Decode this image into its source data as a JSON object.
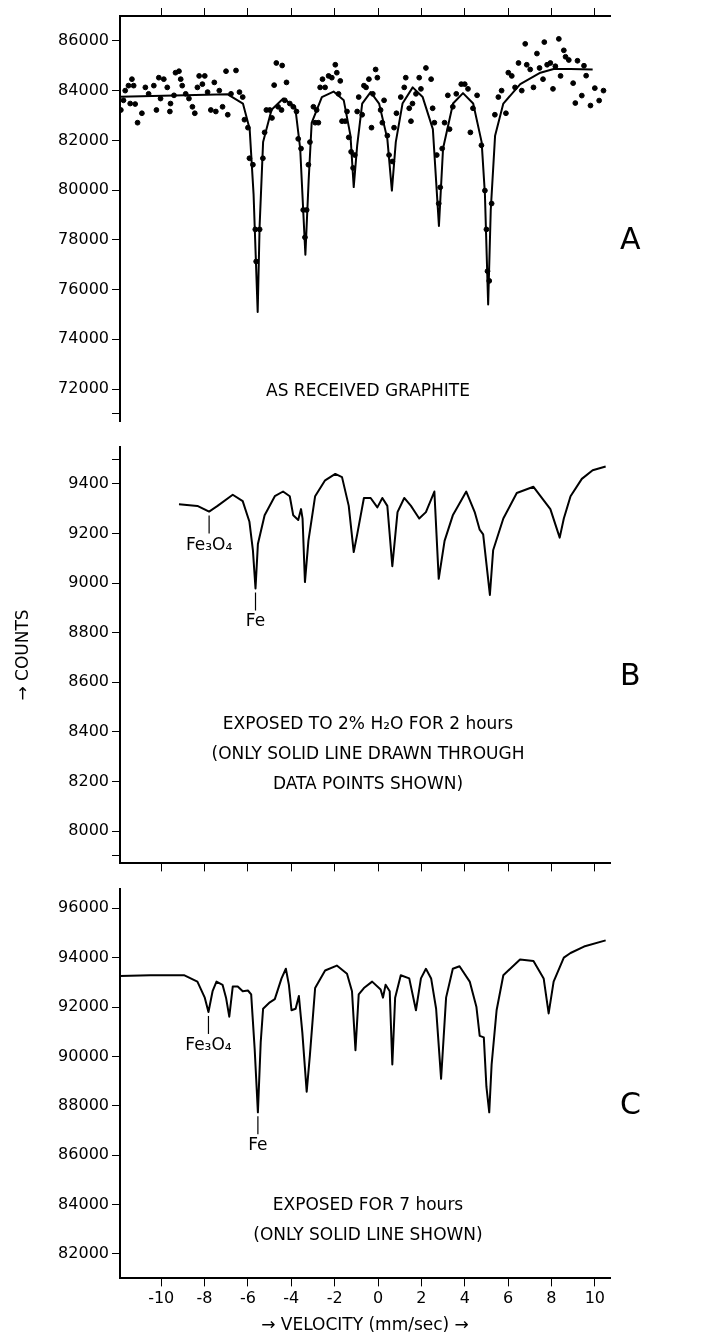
{
  "chart_data": [
    {
      "type": "line",
      "title": "A",
      "annotations": [
        "AS RECEIVED GRAPHITE"
      ],
      "xlim": [
        -11.9,
        10.7
      ],
      "xticks": [
        -10,
        -8,
        -6,
        -4,
        -2,
        0,
        2,
        4,
        6,
        8,
        10
      ],
      "ylim": [
        70700,
        87000
      ],
      "yticks": [
        {
          "value": 71000,
          "label": null
        },
        72000,
        74000,
        76000,
        78000,
        80000,
        82000,
        84000,
        86000
      ],
      "tick_labels": "y",
      "grid": false,
      "series": [
        {
          "type": "scatter",
          "marker": "circle",
          "color": "#000000",
          "x": [
            -11.86,
            -11.74,
            -11.66,
            -11.51,
            -11.35,
            -11.27,
            -11.43,
            -11.2,
            -11.09,
            -10.89,
            -10.73,
            -10.58,
            -10.34,
            -10.22,
            -10.11,
            -10.03,
            -9.88,
            -9.72,
            -9.6,
            -9.57,
            -9.41,
            -9.34,
            -9.18,
            -9.1,
            -9.03,
            -8.87,
            -8.72,
            -8.56,
            -8.45,
            -8.33,
            -8.25,
            -8.1,
            -7.99,
            -7.86,
            -7.71,
            -7.55,
            -7.48,
            -7.32,
            -7.17,
            -7.01,
            -6.93,
            -6.78,
            -6.55,
            -6.39,
            -6.24,
            -6.16,
            -6.0,
            -5.93,
            -5.77,
            -5.66,
            -5.62,
            -5.46,
            -5.31,
            -5.23,
            -5.15,
            -4.99,
            -4.89,
            -4.79,
            -4.69,
            -4.61,
            -4.45,
            -4.42,
            -4.3,
            -4.22,
            -4.07,
            -3.91,
            -3.76,
            -3.68,
            -3.55,
            -3.45,
            -3.37,
            -3.29,
            -3.21,
            -3.14,
            -2.98,
            -2.9,
            -2.83,
            -2.75,
            -2.67,
            -2.56,
            -2.44,
            -2.28,
            -2.13,
            -1.97,
            -1.9,
            -1.82,
            -1.74,
            -1.66,
            -1.51,
            -1.43,
            -1.35,
            -1.24,
            -1.15,
            -1.07,
            -0.96,
            -0.89,
            -0.73,
            -0.65,
            -0.55,
            -0.42,
            -0.3,
            -0.24,
            -0.11,
            -0.03,
            0.12,
            0.2,
            0.28,
            0.43,
            0.51,
            0.66,
            0.74,
            0.85,
            1.05,
            1.21,
            1.28,
            1.44,
            1.52,
            1.59,
            1.75,
            1.9,
            1.98,
            2.21,
            2.45,
            2.52,
            2.6,
            2.71,
            2.8,
            2.87,
            2.96,
            3.07,
            3.22,
            3.3,
            3.45,
            3.61,
            3.84,
            4.0,
            4.15,
            4.26,
            4.38,
            4.57,
            4.77,
            4.93,
            5.0,
            5.05,
            5.13,
            5.24,
            5.39,
            5.55,
            5.7,
            5.9,
            6.01,
            6.17,
            6.32,
            6.48,
            6.63,
            6.79,
            6.86,
            7.02,
            7.17,
            7.33,
            7.45,
            7.61,
            7.67,
            7.8,
            7.95,
            8.07,
            8.18,
            8.34,
            8.42,
            8.57,
            8.65,
            8.8,
            9.0,
            9.1,
            9.2,
            9.4,
            9.5,
            9.6,
            9.8,
            10.0,
            10.2,
            10.4
          ],
          "values": [
            83220,
            83610,
            84000,
            84200,
            84460,
            84200,
            83480,
            83460,
            82710,
            83090,
            84130,
            83870,
            84200,
            83220,
            84520,
            83680,
            84460,
            84130,
            83160,
            83480,
            83810,
            84720,
            84780,
            84460,
            84200,
            83870,
            83680,
            83350,
            83090,
            84130,
            84590,
            84260,
            84590,
            83940,
            83220,
            84330,
            83160,
            84000,
            83350,
            84780,
            83030,
            83870,
            84810,
            83940,
            83740,
            82830,
            82510,
            81280,
            81020,
            78420,
            77130,
            78420,
            81280,
            82320,
            83220,
            83220,
            82900,
            84220,
            85110,
            83350,
            83220,
            85010,
            83610,
            84330,
            83480,
            83350,
            83160,
            82060,
            81670,
            79200,
            78100,
            79200,
            81020,
            81930,
            83350,
            82710,
            83220,
            82710,
            84130,
            84460,
            84130,
            84590,
            84520,
            85040,
            84720,
            83870,
            84390,
            82770,
            82770,
            83160,
            82120,
            81540,
            80890,
            81410,
            83160,
            83740,
            83030,
            84200,
            84130,
            84460,
            82510,
            83870,
            84850,
            84520,
            83220,
            82710,
            83610,
            82190,
            81410,
            81150,
            82510,
            83090,
            83740,
            84130,
            84520,
            83290,
            82770,
            83480,
            83870,
            84520,
            84070,
            84910,
            84460,
            83290,
            82710,
            81410,
            79460,
            80110,
            81670,
            82710,
            83810,
            82450,
            83350,
            83870,
            84260,
            84260,
            84070,
            82320,
            83290,
            83810,
            81800,
            79980,
            78420,
            76740,
            76350,
            79460,
            83030,
            83740,
            84000,
            83090,
            84720,
            84590,
            84130,
            85110,
            84000,
            85880,
            85040,
            84850,
            84130,
            85490,
            84910,
            84460,
            85950,
            85040,
            85110,
            84070,
            84980,
            86080,
            84590,
            85620,
            85360,
            85230,
            84300,
            83500,
            85200,
            83800,
            85000,
            84600,
            83400,
            84100,
            83600,
            84000
          ]
        },
        {
          "type": "line",
          "color": "#000000",
          "x": [
            -11.9,
            -6.93,
            -6.23,
            -5.92,
            -5.74,
            -5.55,
            -5.46,
            -5.3,
            -4.91,
            -4.37,
            -3.82,
            -3.59,
            -3.35,
            -3.2,
            -3.06,
            -2.59,
            -2.05,
            -1.58,
            -1.27,
            -1.12,
            -0.96,
            -0.73,
            -0.34,
            0.05,
            0.43,
            0.64,
            0.82,
            1.13,
            1.6,
            2.06,
            2.53,
            2.81,
            3.0,
            3.46,
            3.92,
            4.39,
            4.78,
            4.93,
            5.08,
            5.2,
            5.4,
            5.78,
            6.56,
            7.49,
            8.1,
            8.88,
            9.9
          ],
          "values": [
            83750,
            83850,
            83480,
            82460,
            79850,
            75100,
            78570,
            81930,
            83230,
            83680,
            83350,
            81680,
            77400,
            80370,
            82700,
            83740,
            83960,
            83610,
            82190,
            80120,
            81800,
            83480,
            83940,
            83480,
            82060,
            79980,
            81930,
            83480,
            84130,
            83740,
            82450,
            78560,
            81670,
            83480,
            83900,
            83480,
            81930,
            79850,
            75400,
            79200,
            82190,
            83480,
            84260,
            84720,
            84870,
            84870,
            84850
          ]
        }
      ]
    },
    {
      "type": "line",
      "title": "B",
      "ylabel": "→ COUNTS",
      "annotations": [
        {
          "text": "Fe₃O₄",
          "x": -7.79,
          "y": 9288
        },
        {
          "text": "Fe",
          "x": -5.65,
          "y": 8978
        },
        "EXPOSED TO 2% H₂O FOR 2 hours",
        "(ONLY SOLID LINE DRAWN THROUGH",
        "DATA POINTS SHOWN)"
      ],
      "xlim": [
        -11.9,
        10.7
      ],
      "xticks": [
        -10,
        -8,
        -6,
        -4,
        -2,
        0,
        2,
        4,
        6,
        8,
        10
      ],
      "ylim": [
        7870,
        9550
      ],
      "yticks": [
        {
          "value": 7900,
          "label": null
        },
        8000,
        8200,
        8400,
        8600,
        8800,
        9000,
        9200,
        9400,
        {
          "value": 9500,
          "label": null
        }
      ],
      "tick_labels": "y",
      "grid": false,
      "series": [
        {
          "color": "#000000",
          "x": [
            -9.18,
            -8.33,
            -7.79,
            -7.4,
            -6.7,
            -6.24,
            -5.93,
            -5.77,
            -5.65,
            -5.54,
            -5.23,
            -4.76,
            -4.38,
            -4.07,
            -3.91,
            -3.68,
            -3.55,
            -3.48,
            -3.37,
            -3.21,
            -2.9,
            -2.44,
            -1.97,
            -1.66,
            -1.35,
            -1.12,
            -0.96,
            -0.65,
            -0.34,
            -0.03,
            0.2,
            0.43,
            0.66,
            0.9,
            1.21,
            1.52,
            1.9,
            2.21,
            2.6,
            2.8,
            3.07,
            3.45,
            4.07,
            4.46,
            4.69,
            4.85,
            5.16,
            5.31,
            5.78,
            6.4,
            7.17,
            7.95,
            8.38,
            8.57,
            8.88,
            9.4,
            9.9,
            10.5
          ],
          "values": [
            9318,
            9311,
            9288,
            9311,
            9356,
            9330,
            9247,
            9132,
            8978,
            9157,
            9273,
            9350,
            9369,
            9350,
            9273,
            9254,
            9298,
            9260,
            9004,
            9170,
            9350,
            9414,
            9440,
            9427,
            9311,
            9125,
            9196,
            9343,
            9343,
            9305,
            9343,
            9311,
            9068,
            9286,
            9343,
            9311,
            9260,
            9286,
            9369,
            9017,
            9170,
            9273,
            9369,
            9286,
            9215,
            9196,
            8952,
            9132,
            9260,
            9363,
            9388,
            9298,
            9183,
            9260,
            9350,
            9420,
            9455,
            9470
          ]
        }
      ]
    },
    {
      "type": "line",
      "title": "C",
      "xlabel": "→ VELOCITY (mm/sec) →",
      "annotations": [
        {
          "text": "Fe₃O₄",
          "x": -7.82,
          "y": 91800
        },
        {
          "text": "Fe",
          "x": -5.54,
          "y": 87730
        },
        "EXPOSED FOR 7 hours",
        "(ONLY SOLID LINE SHOWN)"
      ],
      "xlim": [
        -11.9,
        10.7
      ],
      "xticks": [
        -10,
        -8,
        -6,
        -4,
        -2,
        0,
        2,
        4,
        6,
        8,
        10
      ],
      "ylim": [
        81000,
        96800
      ],
      "yticks": [
        82000,
        84000,
        86000,
        88000,
        90000,
        92000,
        94000,
        96000
      ],
      "grid": false,
      "series": [
        {
          "color": "#000000",
          "x": [
            -11.9,
            -10.5,
            -8.95,
            -8.33,
            -7.99,
            -7.82,
            -7.63,
            -7.45,
            -7.17,
            -7.01,
            -6.86,
            -6.7,
            -6.47,
            -6.24,
            -6.0,
            -5.85,
            -5.69,
            -5.54,
            -5.41,
            -5.3,
            -4.99,
            -4.76,
            -4.45,
            -4.25,
            -4.11,
            -3.99,
            -3.8,
            -3.65,
            -3.49,
            -3.29,
            -3.14,
            -2.9,
            -2.44,
            -1.9,
            -1.43,
            -1.2,
            -1.04,
            -0.89,
            -0.65,
            -0.27,
            0.12,
            0.23,
            0.35,
            0.54,
            0.66,
            0.79,
            1.05,
            1.44,
            1.75,
            1.98,
            2.21,
            2.45,
            2.68,
            2.91,
            3.14,
            3.45,
            3.76,
            4.23,
            4.54,
            4.69,
            4.88,
            5.0,
            5.13,
            5.24,
            5.47,
            5.78,
            6.55,
            7.17,
            7.64,
            7.87,
            8.1,
            8.57,
            8.88,
            9.5,
            10.5
          ],
          "values": [
            93260,
            93290,
            93290,
            93030,
            92380,
            91800,
            92640,
            93030,
            92900,
            92380,
            91610,
            92830,
            92830,
            92640,
            92670,
            92510,
            90320,
            87730,
            90570,
            91930,
            92190,
            92320,
            93160,
            93550,
            92900,
            91870,
            91930,
            92450,
            90960,
            88570,
            90060,
            92770,
            93480,
            93680,
            93350,
            92640,
            90250,
            92510,
            92770,
            93030,
            92710,
            92380,
            92900,
            92640,
            89670,
            92380,
            93290,
            93160,
            91870,
            93160,
            93550,
            93160,
            91930,
            89090,
            92380,
            93550,
            93650,
            93030,
            92000,
            90830,
            90770,
            88770,
            87730,
            89670,
            91870,
            93290,
            93930,
            93870,
            93160,
            91740,
            93030,
            94000,
            94190,
            94450,
            94700
          ]
        }
      ]
    }
  ]
}
